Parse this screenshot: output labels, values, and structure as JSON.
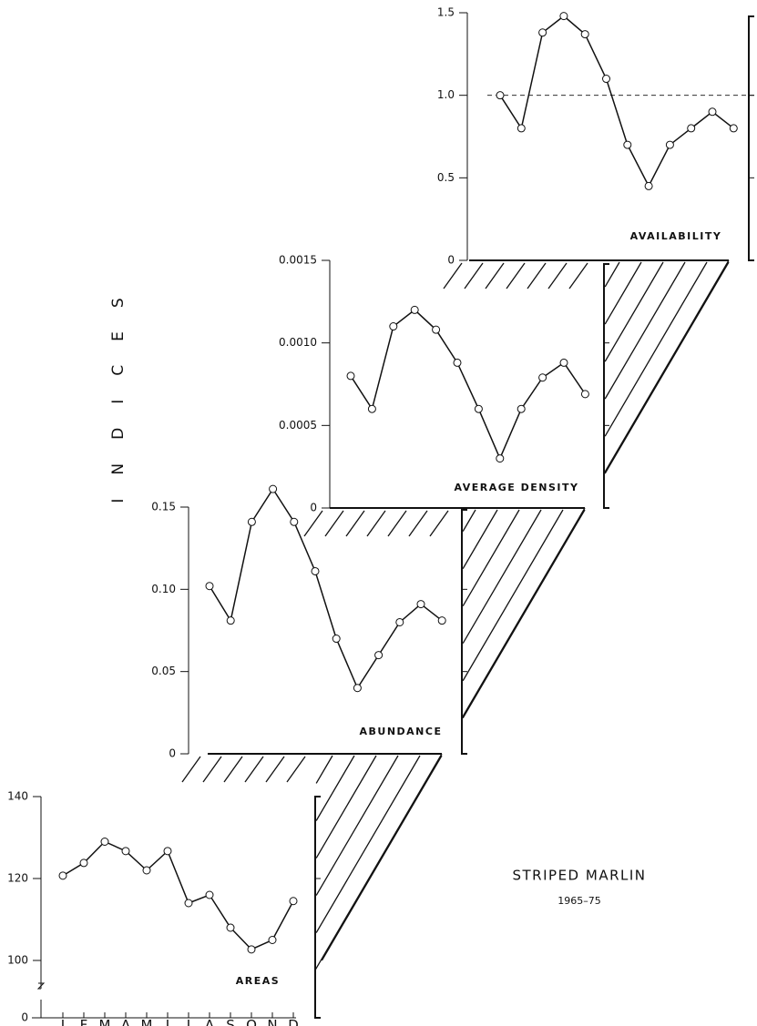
{
  "title": "STRIPED MARLIN",
  "subtitle": "1965–75",
  "ylabel": "INDICES",
  "chart_data": [
    {
      "type": "line",
      "title": "AVAILABILITY",
      "values": [
        1.0,
        0.8,
        1.38,
        1.48,
        1.37,
        1.1,
        0.7,
        0.45,
        0.7,
        0.8,
        0.9,
        0.8
      ],
      "ylim": [
        0,
        1.5
      ],
      "yticks": [
        0,
        0.5,
        {
          "value": 1,
          "label": "1.0"
        },
        1.5
      ],
      "reference_line": 1,
      "color": "#111111"
    },
    {
      "type": "line",
      "title": "AVERAGE DENSITY",
      "values": [
        0.0008,
        0.0006,
        0.0011,
        0.0012,
        0.00108,
        0.00088,
        0.0006,
        0.0003,
        0.0006,
        0.00079,
        0.00088,
        0.00069
      ],
      "ylim": [
        0,
        0.0015
      ],
      "yticks": [
        0,
        0.0005,
        {
          "value": 0.001,
          "label": "0.0010"
        },
        0.0015
      ],
      "color": "#111111"
    },
    {
      "type": "line",
      "title": "ABUNDANCE",
      "values": [
        0.102,
        0.081,
        0.141,
        0.161,
        0.141,
        0.111,
        0.07,
        0.04,
        0.06,
        0.08,
        0.091,
        0.081
      ],
      "ylim": [
        0,
        0.15
      ],
      "yticks": [
        0,
        0.05,
        {
          "value": 0.1,
          "label": "0.10"
        },
        0.15
      ],
      "color": "#111111"
    },
    {
      "type": "line",
      "title": "AREAS",
      "categories": [
        "J",
        "F",
        "M",
        "A",
        "M",
        "J",
        "J",
        "A",
        "S",
        "O",
        "N",
        "D"
      ],
      "values": [
        120.7,
        123.8,
        129,
        126.7,
        122,
        126.7,
        114,
        116,
        108,
        102.7,
        105,
        114.5
      ],
      "ylim": [
        100,
        140
      ],
      "yticks": [
        0,
        100,
        120,
        140
      ],
      "axis_break": true,
      "color": "#111111"
    }
  ]
}
